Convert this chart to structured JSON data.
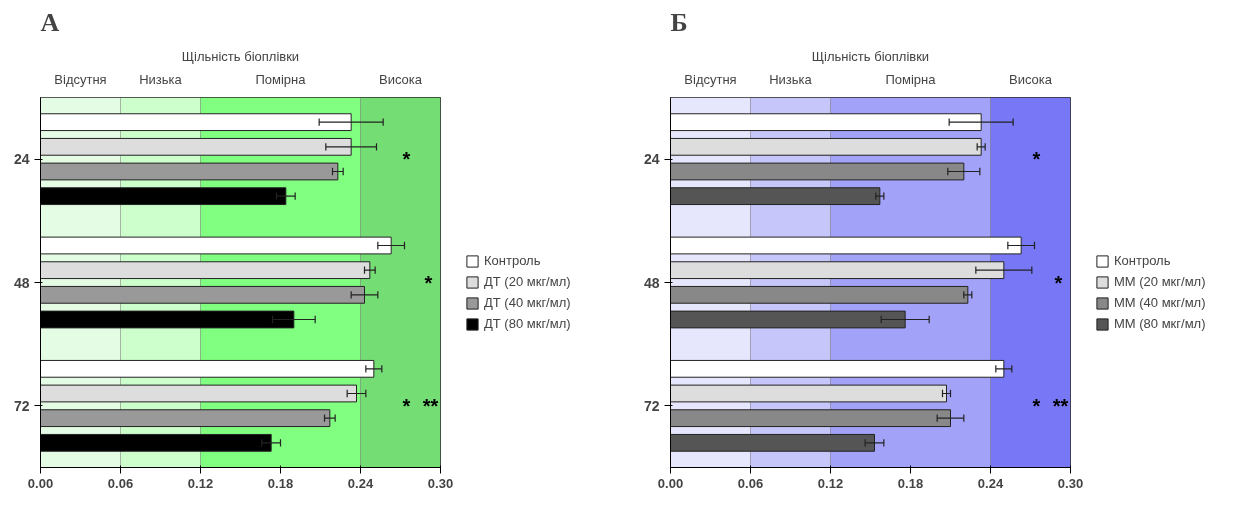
{
  "chart_data": [
    {
      "type": "bar",
      "orientation": "horizontal",
      "title": "А",
      "subtitle": "Щільність біоплівки",
      "categories": [
        "24",
        "48",
        "72"
      ],
      "series": [
        {
          "name": "Контроль",
          "color": "#ffffff",
          "values": [
            0.233,
            0.263,
            0.25
          ],
          "errors": [
            0.024,
            0.01,
            0.006
          ]
        },
        {
          "name": "ДТ (20 мкг/мл)",
          "color": "#dddddd",
          "values": [
            0.233,
            0.247,
            0.237
          ],
          "errors": [
            0.019,
            0.004,
            0.007
          ]
        },
        {
          "name": "ДТ (40 мкг/мл)",
          "color": "#999999",
          "values": [
            0.223,
            0.243,
            0.217
          ],
          "errors": [
            0.004,
            0.01,
            0.004
          ]
        },
        {
          "name": "ДТ (80 мкг/мл)",
          "color": "#000000",
          "values": [
            0.184,
            0.19,
            0.173
          ],
          "errors": [
            0.007,
            0.016,
            0.007
          ]
        }
      ],
      "xlim": [
        0,
        0.3
      ],
      "xticks": [
        {
          "value": 0,
          "label": "0.00"
        },
        {
          "value": 0.06,
          "label": "0.06"
        },
        {
          "value": 0.12,
          "label": "0.12"
        },
        {
          "value": 0.18,
          "label": "0.18"
        },
        {
          "value": 0.24,
          "label": "0.24"
        },
        {
          "value": 0.3,
          "label": "0.30"
        }
      ],
      "bands": [
        {
          "axis": "x",
          "from": 0,
          "to": 0.06,
          "label": "Відсутня",
          "color": "#e4fbe4"
        },
        {
          "axis": "x",
          "from": 0.06,
          "to": 0.12,
          "label": "Низька",
          "color": "#ccffcc"
        },
        {
          "axis": "x",
          "from": 0.12,
          "to": 0.24,
          "label": "Помірна",
          "color": "#80ff80"
        },
        {
          "axis": "x",
          "from": 0.24,
          "to": 0.3,
          "label": "Висока",
          "color": "#74dd74"
        }
      ],
      "annotations": [
        "*",
        "*",
        "*",
        "**"
      ],
      "legend": "right",
      "grid": false
    },
    {
      "type": "bar",
      "orientation": "horizontal",
      "title": "Б",
      "subtitle": "Щільність біоплівки",
      "categories": [
        "24",
        "48",
        "72"
      ],
      "series": [
        {
          "name": "Контроль",
          "color": "#ffffff",
          "values": [
            0.233,
            0.263,
            0.25
          ],
          "errors": [
            0.024,
            0.01,
            0.006
          ]
        },
        {
          "name": "ММ (20 мкг/мл)",
          "color": "#dddddd",
          "values": [
            0.233,
            0.25,
            0.207
          ],
          "errors": [
            0.003,
            0.021,
            0.003
          ]
        },
        {
          "name": "ММ (40 мкг/мл)",
          "color": "#888888",
          "values": [
            0.22,
            0.223,
            0.21
          ],
          "errors": [
            0.012,
            0.003,
            0.01
          ]
        },
        {
          "name": "ММ (80 мкг/мл)",
          "color": "#555555",
          "values": [
            0.157,
            0.176,
            0.153
          ],
          "errors": [
            0.003,
            0.018,
            0.007
          ]
        }
      ],
      "xlim": [
        0,
        0.3
      ],
      "xticks": [
        {
          "value": 0,
          "label": "0.00"
        },
        {
          "value": 0.06,
          "label": "0.06"
        },
        {
          "value": 0.12,
          "label": "0.12"
        },
        {
          "value": 0.18,
          "label": "0.18"
        },
        {
          "value": 0.24,
          "label": "0.24"
        },
        {
          "value": 0.3,
          "label": "0.30"
        }
      ],
      "bands": [
        {
          "axis": "x",
          "from": 0,
          "to": 0.06,
          "label": "Відсутня",
          "color": "#e6e6fd"
        },
        {
          "axis": "x",
          "from": 0.06,
          "to": 0.12,
          "label": "Низька",
          "color": "#c6c6fa"
        },
        {
          "axis": "x",
          "from": 0.12,
          "to": 0.24,
          "label": "Помірна",
          "color": "#a2a2f8"
        },
        {
          "axis": "x",
          "from": 0.24,
          "to": 0.3,
          "label": "Висока",
          "color": "#7878f6"
        }
      ],
      "annotations": [
        "*",
        "*",
        "*",
        "**"
      ],
      "legend": "right",
      "grid": false
    }
  ]
}
